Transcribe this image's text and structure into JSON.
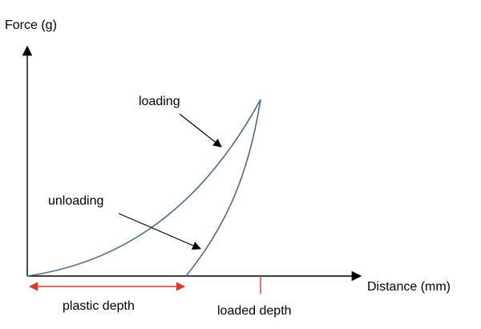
{
  "diagram": {
    "y_axis_label": "Force (g)",
    "x_axis_label": "Distance (mm)",
    "loading_label": "loading",
    "unloading_label": "unloading",
    "plastic_depth_label": "plastic depth",
    "loaded_depth_label": "loaded depth"
  },
  "colors": {
    "axis": "#000000",
    "curve": "#4a6a96",
    "depth_marker": "#e4362b",
    "text": "#000000"
  }
}
